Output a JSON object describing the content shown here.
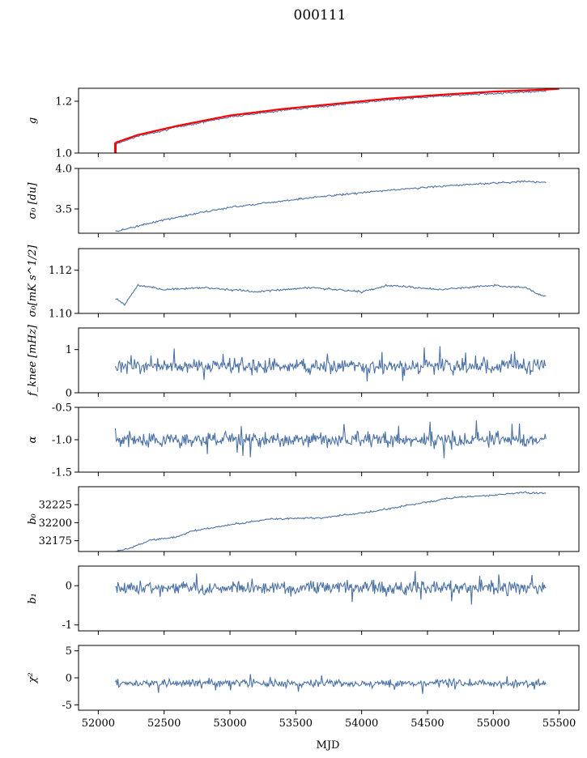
{
  "title": "000111",
  "xlabel": "MJD",
  "x_ticks": [
    "52000",
    "52500",
    "53000",
    "53500",
    "54000",
    "54500",
    "55000",
    "55500"
  ],
  "colors": {
    "series": "#4c72a5",
    "fit": "#ff0000",
    "axis": "#000000",
    "background": "#ffffff"
  },
  "chart_data": [
    {
      "type": "line",
      "panel": "g",
      "ylabel": "g",
      "xlim": [
        51850,
        55650
      ],
      "ylim": [
        1.0,
        1.25
      ],
      "y_ticks": [
        "1.0",
        "1.2"
      ],
      "series": [
        {
          "kind": "data",
          "x": [
            52130,
            52300,
            52600,
            53000,
            53400,
            53800,
            54200,
            54600,
            55000,
            55400
          ],
          "y": [
            1.035,
            1.065,
            1.1,
            1.14,
            1.165,
            1.185,
            1.205,
            1.22,
            1.23,
            1.24
          ]
        },
        {
          "kind": "fit",
          "x": [
            52130,
            52300,
            52600,
            53000,
            53400,
            53800,
            54200,
            54600,
            55000,
            55400,
            55500
          ],
          "y": [
            1.04,
            1.07,
            1.105,
            1.145,
            1.17,
            1.19,
            1.21,
            1.225,
            1.237,
            1.245,
            1.248
          ]
        }
      ]
    },
    {
      "type": "line",
      "panel": "sigma0_du",
      "ylabel": "σ₀ [du]",
      "xlim": [
        51850,
        55650
      ],
      "ylim": [
        3.2,
        4.0
      ],
      "y_ticks": [
        "3.5",
        "4.0"
      ],
      "series": [
        {
          "kind": "data",
          "x": [
            52130,
            52400,
            52700,
            53000,
            53400,
            53800,
            54200,
            54600,
            55000,
            55250,
            55400
          ],
          "y": [
            3.22,
            3.33,
            3.43,
            3.52,
            3.6,
            3.67,
            3.73,
            3.78,
            3.82,
            3.84,
            3.83
          ]
        }
      ]
    },
    {
      "type": "line",
      "panel": "sigma0_mK",
      "ylabel": "σ₀[mK s^1/2]",
      "xlim": [
        51850,
        55650
      ],
      "ylim": [
        1.1,
        1.13
      ],
      "y_ticks": [
        "1.10",
        "1.12"
      ],
      "series": [
        {
          "kind": "data",
          "x": [
            52130,
            52200,
            52300,
            52500,
            52800,
            53200,
            53600,
            54000,
            54200,
            54600,
            55000,
            55250,
            55330,
            55400
          ],
          "y": [
            1.107,
            1.104,
            1.113,
            1.111,
            1.112,
            1.11,
            1.112,
            1.11,
            1.113,
            1.111,
            1.113,
            1.112,
            1.109,
            1.108
          ]
        }
      ]
    },
    {
      "type": "line",
      "panel": "fknee",
      "ylabel": "f_knee [mHz]",
      "xlim": [
        51850,
        55650
      ],
      "ylim": [
        0,
        1.5
      ],
      "y_ticks": [
        "0",
        "1"
      ],
      "series": [
        {
          "kind": "data",
          "mean": 0.62,
          "spread": 0.14,
          "x_range": [
            52130,
            55400
          ]
        }
      ]
    },
    {
      "type": "line",
      "panel": "alpha",
      "ylabel": "α",
      "xlim": [
        51850,
        55650
      ],
      "ylim": [
        -1.5,
        -0.5
      ],
      "y_ticks": [
        "-1.5",
        "-1.0",
        "-0.5"
      ],
      "series": [
        {
          "kind": "data",
          "mean": -1.0,
          "spread": 0.09,
          "x_range": [
            52130,
            55400
          ]
        }
      ]
    },
    {
      "type": "line",
      "panel": "b0",
      "ylabel": "b₀",
      "xlim": [
        51850,
        55650
      ],
      "ylim": [
        32160,
        32250
      ],
      "y_ticks": [
        "32175",
        "32200",
        "32225"
      ],
      "series": [
        {
          "kind": "data",
          "x": [
            52130,
            52250,
            52400,
            52600,
            52700,
            53000,
            53300,
            53700,
            54100,
            54500,
            54700,
            55000,
            55200,
            55400
          ],
          "y": [
            32160,
            32165,
            32176,
            32180,
            32188,
            32197,
            32205,
            32207,
            32216,
            32229,
            32235,
            32238,
            32242,
            32241
          ]
        }
      ]
    },
    {
      "type": "line",
      "panel": "b1",
      "ylabel": "b₁",
      "xlim": [
        51850,
        55650
      ],
      "ylim": [
        -1.15,
        0.5
      ],
      "y_ticks": [
        "-1",
        "0"
      ],
      "series": [
        {
          "kind": "data",
          "mean": -0.05,
          "spread": 0.14,
          "x_range": [
            52130,
            55400
          ]
        }
      ]
    },
    {
      "type": "line",
      "panel": "chi2",
      "ylabel": "χ²",
      "xlim": [
        51850,
        55650
      ],
      "ylim": [
        -6,
        6
      ],
      "y_ticks": [
        "-5",
        "0",
        "5"
      ],
      "series": [
        {
          "kind": "data",
          "mean": -1.0,
          "spread": 0.6,
          "x_range": [
            52130,
            55400
          ]
        }
      ]
    }
  ]
}
